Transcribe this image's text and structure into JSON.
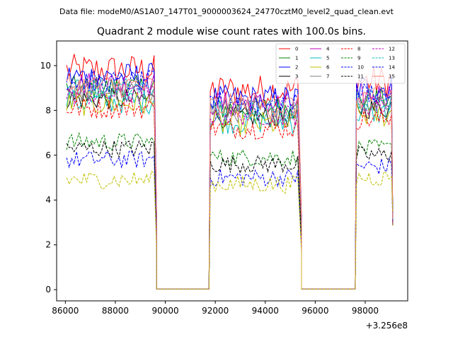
{
  "figure": {
    "suptitle": "Data file: modeM0/AS1A07_147T01_9000003624_24770cztM0_level2_quad_clean.evt"
  },
  "chart_data": {
    "type": "line",
    "title": "Quadrant 2 module wise count rates with 100.0s bins.",
    "xlabel": "",
    "ylabel": "",
    "x_offset_label": "+3.256e8",
    "xlim": [
      85650,
      99700
    ],
    "ylim": [
      -0.5,
      11.1
    ],
    "xticks": [
      86000,
      88000,
      90000,
      92000,
      94000,
      96000,
      98000
    ],
    "xtick_labels": [
      "86000",
      "88000",
      "90000",
      "92000",
      "94000",
      "96000",
      "98000"
    ],
    "yticks": [
      0,
      2,
      4,
      6,
      8,
      10
    ],
    "ytick_labels": [
      "0",
      "2",
      "4",
      "6",
      "8",
      "10"
    ],
    "grid": false,
    "legend_position": "top-right",
    "legend_columns": 4,
    "segments": [
      [
        86050,
        89550
      ],
      [
        91800,
        95350
      ],
      [
        97650,
        99050
      ]
    ],
    "gaps": [
      [
        89650,
        91750
      ],
      [
        95450,
        97600
      ]
    ],
    "series": [
      {
        "name": "0",
        "color": "#ff0000",
        "dash": "solid",
        "level": [
          9.8,
          8.9,
          9.3
        ],
        "spread": 0.45
      },
      {
        "name": "1",
        "color": "#008000",
        "dash": "solid",
        "level": [
          9.0,
          8.1,
          8.5
        ],
        "spread": 0.35
      },
      {
        "name": "2",
        "color": "#0000ff",
        "dash": "solid",
        "level": [
          9.5,
          8.5,
          9.0
        ],
        "spread": 0.4
      },
      {
        "name": "3",
        "color": "#000000",
        "dash": "solid",
        "level": [
          8.5,
          7.7,
          8.1
        ],
        "spread": 0.3
      },
      {
        "name": "4",
        "color": "#bf00bf",
        "dash": "solid",
        "level": [
          9.2,
          8.3,
          8.7
        ],
        "spread": 0.35
      },
      {
        "name": "5",
        "color": "#00bfbf",
        "dash": "solid",
        "level": [
          8.4,
          7.5,
          7.9
        ],
        "spread": 0.35
      },
      {
        "name": "6",
        "color": "#bfbf00",
        "dash": "solid",
        "level": [
          8.3,
          7.4,
          7.8
        ],
        "spread": 0.35
      },
      {
        "name": "7",
        "color": "#808080",
        "dash": "solid",
        "level": [
          8.9,
          8.0,
          8.4
        ],
        "spread": 0.35
      },
      {
        "name": "8",
        "color": "#ff0000",
        "dash": "dashed",
        "level": [
          8.1,
          7.2,
          7.6
        ],
        "spread": 0.3
      },
      {
        "name": "9",
        "color": "#008000",
        "dash": "dashed",
        "level": [
          6.6,
          5.9,
          6.3
        ],
        "spread": 0.25
      },
      {
        "name": "10",
        "color": "#0000ff",
        "dash": "dashed",
        "level": [
          5.8,
          5.0,
          5.5
        ],
        "spread": 0.25
      },
      {
        "name": "11",
        "color": "#000000",
        "dash": "dashed",
        "level": [
          6.3,
          5.6,
          6.0
        ],
        "spread": 0.25
      },
      {
        "name": "12",
        "color": "#bf00bf",
        "dash": "dashed",
        "level": [
          8.7,
          7.8,
          8.2
        ],
        "spread": 0.3
      },
      {
        "name": "13",
        "color": "#00bfbf",
        "dash": "dashed",
        "level": [
          9.0,
          8.1,
          8.5
        ],
        "spread": 0.3
      },
      {
        "name": "14",
        "color": "#0000ff",
        "dash": "dashed",
        "level": [
          9.3,
          8.4,
          8.8
        ],
        "spread": 0.3
      },
      {
        "name": "15",
        "color": "#fa8072",
        "dash": "solid",
        "level": [
          9.1,
          8.2,
          8.6
        ],
        "spread": 0.35
      }
    ],
    "extra_series": [
      {
        "color": "#bfbf00",
        "dash": "dashed",
        "level": [
          4.9,
          4.7,
          5.0
        ],
        "spread": 0.25
      }
    ]
  }
}
